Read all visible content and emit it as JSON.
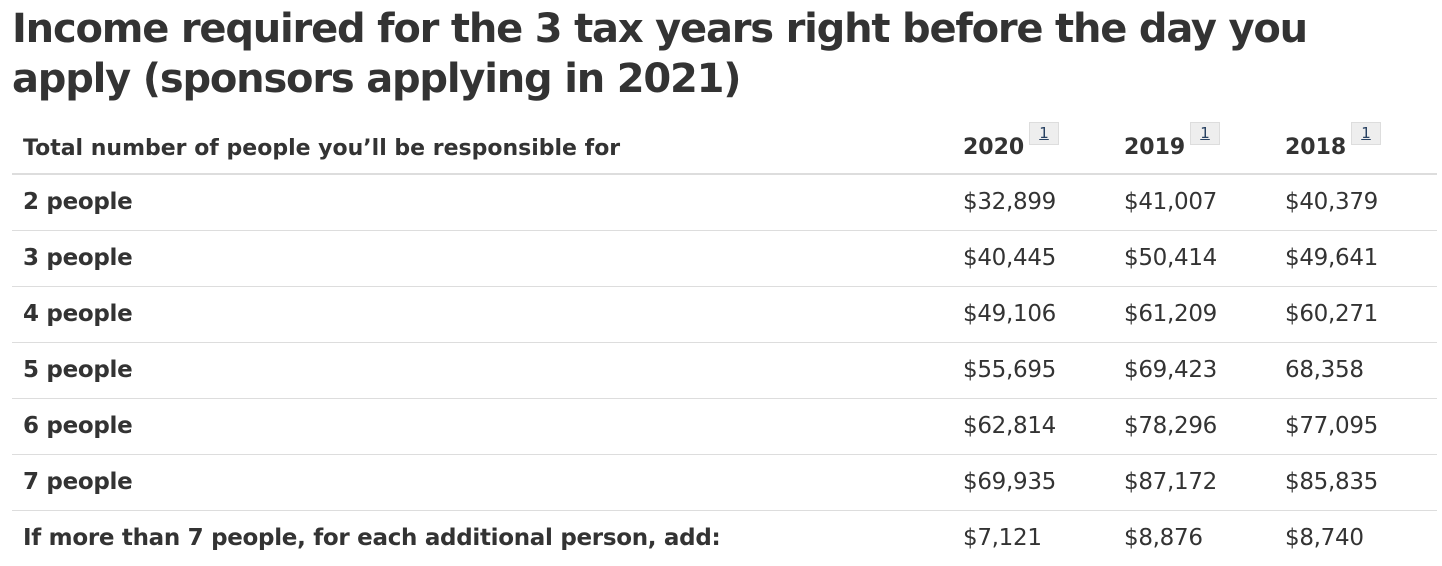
{
  "title": "Income required for the 3 tax years right before the day you apply (sponsors applying in 2021)",
  "table": {
    "header": {
      "label": "Total number of people you’ll be responsible for",
      "years": [
        {
          "year": "2020",
          "footnote": "1"
        },
        {
          "year": "2019",
          "footnote": "1"
        },
        {
          "year": "2018",
          "footnote": "1"
        }
      ]
    },
    "rows": [
      {
        "label": "2 people",
        "values": [
          "$32,899",
          "$41,007",
          "$40,379"
        ]
      },
      {
        "label": "3 people",
        "values": [
          "$40,445",
          "$50,414",
          "$49,641"
        ]
      },
      {
        "label": "4 people",
        "values": [
          "$49,106",
          "$61,209",
          "$60,271"
        ]
      },
      {
        "label": "5 people",
        "values": [
          "$55,695",
          "$69,423",
          "68,358"
        ]
      },
      {
        "label": "6 people",
        "values": [
          "$62,814",
          "$78,296",
          "$77,095"
        ]
      },
      {
        "label": "7 people",
        "values": [
          "$69,935",
          "$87,172",
          "$85,835"
        ]
      },
      {
        "label": "If more than 7 people, for each additional person, add:",
        "values": [
          "$7,121",
          "$8,876",
          "$8,740"
        ]
      }
    ]
  },
  "colors": {
    "text": "#333333",
    "border": "#dddddd",
    "footnote_bg": "#eeeeee",
    "footnote_link": "#284162"
  }
}
